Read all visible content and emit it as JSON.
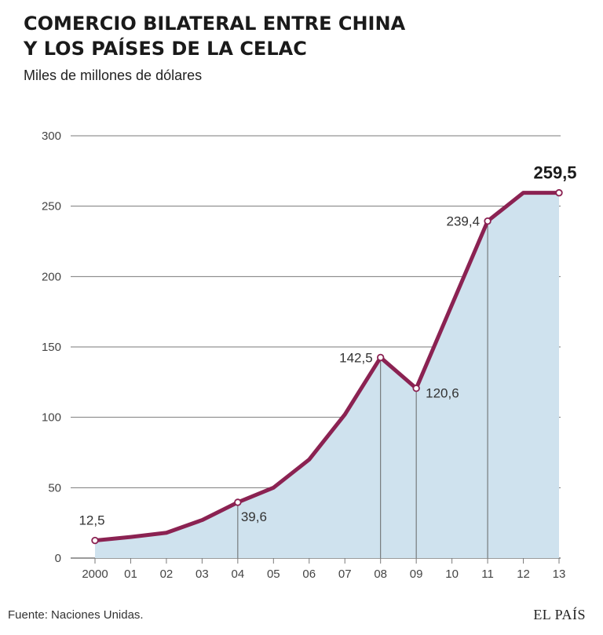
{
  "header": {
    "title_line1": "COMERCIO BILATERAL ENTRE CHINA",
    "title_line2": "Y LOS PAÍSES DE LA CELAC",
    "subtitle": "Miles de millones de dólares"
  },
  "footer": {
    "source": "Fuente: Naciones Unidas.",
    "brand": "EL PAÍS"
  },
  "chart_data": {
    "type": "area",
    "title": "COMERCIO BILATERAL ENTRE CHINA Y LOS PAÍSES DE LA CELAC",
    "subtitle": "Miles de millones de dólares",
    "xlabel": "",
    "ylabel": "",
    "categories": [
      "2000",
      "01",
      "02",
      "03",
      "04",
      "05",
      "06",
      "07",
      "08",
      "09",
      "10",
      "11",
      "12",
      "13"
    ],
    "values": [
      12.5,
      15,
      18,
      27,
      39.6,
      50,
      70,
      102,
      142.5,
      120.6,
      180,
      239.4,
      259.5,
      259.5
    ],
    "ylim": [
      0,
      300
    ],
    "yticks": [
      0,
      50,
      100,
      150,
      200,
      250,
      300
    ],
    "grid": true,
    "colors": {
      "line": "#8b2252",
      "fill": "#cfe2ee",
      "grid": "#7a7a7a",
      "marker_fill": "#ffffff"
    },
    "annotations": [
      {
        "index": 0,
        "label": "12,5",
        "bold": false,
        "pos": "above-left"
      },
      {
        "index": 4,
        "label": "39,6",
        "bold": false,
        "pos": "below-right"
      },
      {
        "index": 8,
        "label": "142,5",
        "bold": false,
        "pos": "left"
      },
      {
        "index": 9,
        "label": "120,6",
        "bold": false,
        "pos": "right"
      },
      {
        "index": 11,
        "label": "239,4",
        "bold": false,
        "pos": "left"
      },
      {
        "index": 13,
        "label": "259,5",
        "bold": true,
        "pos": "above"
      }
    ]
  }
}
